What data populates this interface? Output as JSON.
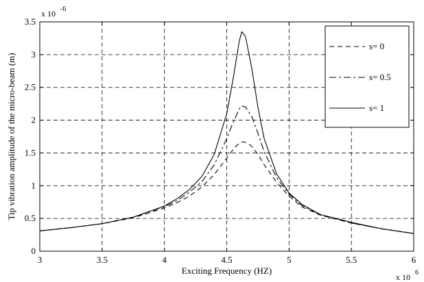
{
  "chart_data": {
    "type": "line",
    "title": "",
    "xlabel": "Exciting Frequency (HZ)",
    "ylabel": "Tip vibration amplitude of the micro-beam (m)",
    "x_multiplier": "x 10",
    "x_exponent": "6",
    "y_multiplier": "x 10",
    "y_exponent": "-6",
    "xlim": [
      3,
      6
    ],
    "ylim": [
      0,
      3.5
    ],
    "xticks": [
      "3",
      "3.5",
      "4",
      "4.5",
      "5",
      "5.5",
      "6"
    ],
    "yticks": [
      "0",
      "0.5",
      "1",
      "1.5",
      "2",
      "2.5",
      "3",
      "3.5"
    ],
    "grid": true,
    "legend_position": "top-right",
    "series": [
      {
        "name": "s= 0",
        "style": "dashed",
        "color": "#000000",
        "points": [
          [
            3.0,
            0.31
          ],
          [
            3.25,
            0.36
          ],
          [
            3.5,
            0.42
          ],
          [
            3.75,
            0.51
          ],
          [
            4.0,
            0.66
          ],
          [
            4.1,
            0.74
          ],
          [
            4.2,
            0.84
          ],
          [
            4.3,
            0.98
          ],
          [
            4.4,
            1.17
          ],
          [
            4.5,
            1.42
          ],
          [
            4.55,
            1.55
          ],
          [
            4.6,
            1.65
          ],
          [
            4.63,
            1.67
          ],
          [
            4.67,
            1.65
          ],
          [
            4.7,
            1.6
          ],
          [
            4.75,
            1.48
          ],
          [
            4.8,
            1.32
          ],
          [
            4.9,
            1.05
          ],
          [
            5.0,
            0.84
          ],
          [
            5.1,
            0.68
          ],
          [
            5.25,
            0.55
          ],
          [
            5.5,
            0.43
          ],
          [
            5.75,
            0.34
          ],
          [
            6.0,
            0.27
          ]
        ]
      },
      {
        "name": "s= 0.5",
        "style": "dashdot",
        "color": "#000000",
        "points": [
          [
            3.0,
            0.31
          ],
          [
            3.25,
            0.36
          ],
          [
            3.5,
            0.42
          ],
          [
            3.75,
            0.52
          ],
          [
            4.0,
            0.68
          ],
          [
            4.1,
            0.77
          ],
          [
            4.2,
            0.9
          ],
          [
            4.3,
            1.06
          ],
          [
            4.4,
            1.32
          ],
          [
            4.5,
            1.72
          ],
          [
            4.55,
            1.96
          ],
          [
            4.6,
            2.17
          ],
          [
            4.62,
            2.22
          ],
          [
            4.65,
            2.2
          ],
          [
            4.7,
            2.06
          ],
          [
            4.75,
            1.8
          ],
          [
            4.8,
            1.52
          ],
          [
            4.9,
            1.12
          ],
          [
            5.0,
            0.87
          ],
          [
            5.1,
            0.7
          ],
          [
            5.25,
            0.56
          ],
          [
            5.5,
            0.43
          ],
          [
            5.75,
            0.34
          ],
          [
            6.0,
            0.27
          ]
        ]
      },
      {
        "name": "s= 1",
        "style": "solid",
        "color": "#000000",
        "points": [
          [
            3.0,
            0.31
          ],
          [
            3.25,
            0.36
          ],
          [
            3.5,
            0.42
          ],
          [
            3.75,
            0.52
          ],
          [
            4.0,
            0.69
          ],
          [
            4.1,
            0.8
          ],
          [
            4.2,
            0.94
          ],
          [
            4.3,
            1.14
          ],
          [
            4.4,
            1.48
          ],
          [
            4.5,
            2.1
          ],
          [
            4.55,
            2.62
          ],
          [
            4.6,
            3.2
          ],
          [
            4.62,
            3.35
          ],
          [
            4.65,
            3.28
          ],
          [
            4.7,
            2.8
          ],
          [
            4.75,
            2.2
          ],
          [
            4.8,
            1.72
          ],
          [
            4.9,
            1.18
          ],
          [
            5.0,
            0.89
          ],
          [
            5.1,
            0.72
          ],
          [
            5.25,
            0.56
          ],
          [
            5.5,
            0.44
          ],
          [
            5.75,
            0.34
          ],
          [
            6.0,
            0.27
          ]
        ]
      }
    ]
  }
}
